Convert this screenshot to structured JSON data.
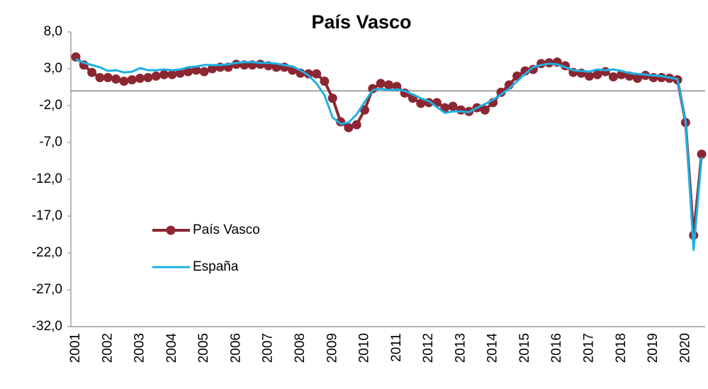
{
  "chart_data": {
    "type": "line",
    "title": "País Vasco",
    "categories": [
      "2001",
      null,
      null,
      null,
      "2002",
      null,
      null,
      null,
      "2003",
      null,
      null,
      null,
      "2004",
      null,
      null,
      null,
      "2005",
      null,
      null,
      null,
      "2006",
      null,
      null,
      null,
      "2007",
      null,
      null,
      null,
      "2008",
      null,
      null,
      null,
      "2009",
      null,
      null,
      null,
      "2010",
      null,
      null,
      null,
      "2011",
      null,
      null,
      null,
      "2012",
      null,
      null,
      null,
      "2013",
      null,
      null,
      null,
      "2014",
      null,
      null,
      null,
      "2015",
      null,
      null,
      null,
      "2016",
      null,
      null,
      null,
      "2017",
      null,
      null,
      null,
      "2018",
      null,
      null,
      null,
      "2019",
      null,
      null,
      null,
      "2020",
      null,
      null
    ],
    "series": [
      {
        "name": "País Vasco",
        "color": "#8c2633",
        "marker": true,
        "values": [
          4.6,
          3.5,
          2.5,
          1.8,
          1.8,
          1.6,
          1.3,
          1.5,
          1.7,
          1.8,
          2.0,
          2.2,
          2.2,
          2.4,
          2.6,
          2.8,
          2.6,
          3.0,
          3.2,
          3.2,
          3.6,
          3.5,
          3.5,
          3.6,
          3.4,
          3.2,
          3.2,
          2.8,
          2.4,
          2.3,
          2.3,
          1.3,
          -1.0,
          -4.2,
          -5.0,
          -4.6,
          -2.6,
          0.3,
          1.0,
          0.8,
          0.6,
          -0.3,
          -1.0,
          -1.7,
          -1.6,
          -1.6,
          -2.3,
          -2.1,
          -2.6,
          -2.8,
          -2.3,
          -2.6,
          -1.6,
          -0.2,
          0.8,
          2.0,
          2.7,
          2.9,
          3.7,
          3.8,
          3.9,
          3.4,
          2.5,
          2.4,
          2.0,
          2.2,
          2.6,
          1.9,
          2.2,
          2.0,
          1.7,
          2.1,
          1.8,
          1.8,
          1.7,
          1.5,
          -4.3,
          -19.6,
          -8.6
        ]
      },
      {
        "name": "España",
        "color": "#1cb1e4",
        "marker": false,
        "values": [
          4.3,
          3.8,
          3.5,
          3.2,
          2.7,
          2.8,
          2.5,
          2.6,
          3.1,
          2.8,
          2.8,
          2.9,
          2.8,
          2.9,
          3.2,
          3.3,
          3.5,
          3.5,
          3.5,
          3.6,
          3.8,
          3.9,
          3.9,
          3.8,
          3.8,
          3.7,
          3.5,
          3.3,
          2.8,
          2.1,
          1.0,
          -0.6,
          -3.6,
          -4.5,
          -4.3,
          -3.2,
          -1.5,
          0.1,
          0.3,
          0.1,
          0.2,
          0.0,
          -0.5,
          -1.0,
          -1.4,
          -2.2,
          -3.0,
          -2.8,
          -2.8,
          -2.9,
          -2.3,
          -1.8,
          -1.2,
          -0.5,
          0.3,
          1.3,
          2.3,
          3.2,
          3.5,
          3.7,
          3.6,
          3.2,
          2.8,
          2.7,
          2.6,
          2.9,
          2.8,
          2.9,
          2.7,
          2.4,
          2.3,
          2.2,
          2.1,
          2.0,
          1.8,
          1.6,
          -4.2,
          -21.6,
          -9.0
        ]
      }
    ],
    "ylim": [
      -32,
      8
    ],
    "yticks": [
      {
        "value": 8,
        "label": "8,0"
      },
      {
        "value": 3,
        "label": "3,0"
      },
      {
        "value": -2,
        "label": "-2,0"
      },
      {
        "value": -7,
        "label": "-7,0"
      },
      {
        "value": -12,
        "label": "-12,0"
      },
      {
        "value": -17,
        "label": "-17,0"
      },
      {
        "value": -22,
        "label": "-22,0"
      },
      {
        "value": -27,
        "label": "-27,0"
      },
      {
        "value": -32,
        "label": "-32,0"
      }
    ],
    "legend": "lower left"
  }
}
